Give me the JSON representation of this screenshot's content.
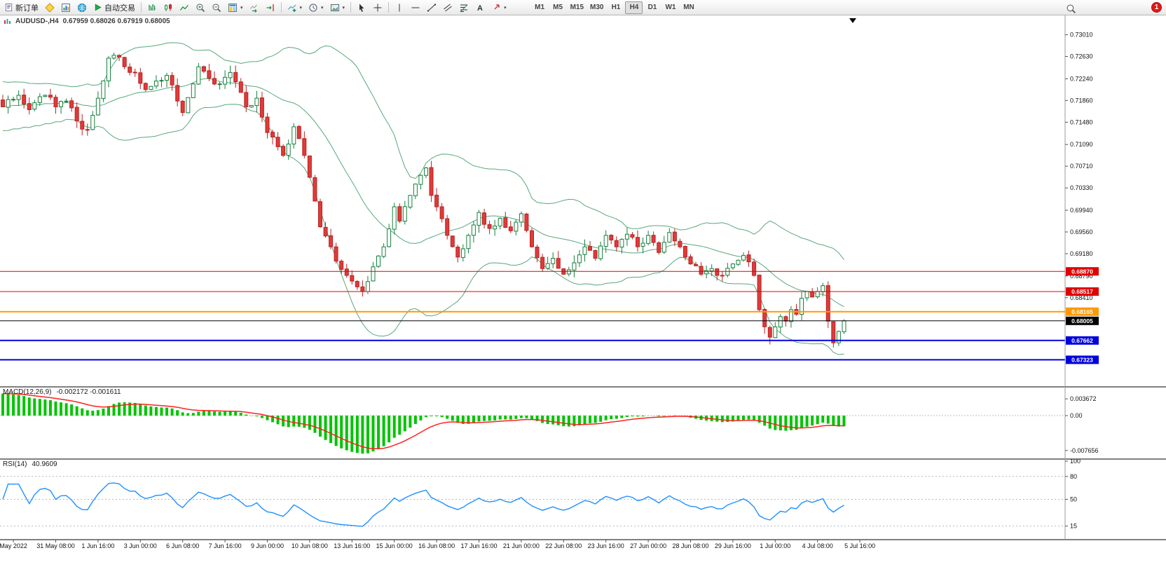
{
  "toolbar": {
    "new_order": "新订单",
    "auto_trading": "自动交易",
    "timeframes": [
      "M1",
      "M5",
      "M15",
      "M30",
      "H1",
      "H4",
      "D1",
      "W1",
      "MN"
    ],
    "active_timeframe": "H4",
    "notification_count": "1"
  },
  "icons": {
    "new-order-icon": "document",
    "metaeditor-icon": "yellow-diamond",
    "data-window-icon": "bar-panel",
    "mql5-community-icon": "globe",
    "auto-trading-icon": "green-play-triangle",
    "bars-chart-icon": "ohlc-bars",
    "candlestick-chart-icon": "candles",
    "line-chart-icon": "polyline",
    "zoom-in-icon": "magnifier-plus",
    "zoom-out-icon": "magnifier-minus",
    "new-chart-icon": "tiled-window",
    "auto-scroll-icon": "chart-arrow-right",
    "chart-shift-icon": "arrow-to-bar",
    "indicators-icon": "chart-plus",
    "periods-icon": "clock",
    "templates-icon": "picture",
    "cursor-icon": "pointer-arrow",
    "crosshair-icon": "plus-cross",
    "vertical-line-icon": "vertical-line",
    "horizontal-line-icon": "horizontal-line",
    "trendline-icon": "diagonal-line",
    "channel-icon": "parallel-lines",
    "fibonacci-icon": "stacked-lines",
    "text-icon": "letter-A",
    "arrows-icon": "red-arrow",
    "search-icon": "magnifier",
    "price-shift-icon": "black-down-triangle"
  },
  "chart": {
    "symbol_label": "AUDUSD-,H4",
    "ohlc": "0.67959 0.68026 0.67919 0.68005"
  },
  "chart_data": {
    "type": "candlestick",
    "symbol": "AUDUSD",
    "timeframe": "H4",
    "title": "AUDUSD-,H4",
    "current_bar": {
      "open": 0.67959,
      "high": 0.68026,
      "low": 0.67919,
      "close": 0.68005
    },
    "indicators": [
      "Bollinger Bands(20,2)",
      "MACD(12,26,9)",
      "RSI(14)"
    ],
    "candle_count": 160,
    "price_path": [
      [
        0,
        0.7175
      ],
      [
        3,
        0.7195
      ],
      [
        5,
        0.717
      ],
      [
        8,
        0.7195
      ],
      [
        10,
        0.7175
      ],
      [
        12,
        0.7185
      ],
      [
        14,
        0.715
      ],
      [
        16,
        0.7135
      ],
      [
        18,
        0.719
      ],
      [
        20,
        0.726
      ],
      [
        21,
        0.7265
      ],
      [
        23,
        0.7245
      ],
      [
        25,
        0.7235
      ],
      [
        27,
        0.7205
      ],
      [
        29,
        0.722
      ],
      [
        31,
        0.723
      ],
      [
        33,
        0.7185
      ],
      [
        34,
        0.7165
      ],
      [
        36,
        0.7215
      ],
      [
        37,
        0.7245
      ],
      [
        39,
        0.7225
      ],
      [
        41,
        0.7215
      ],
      [
        43,
        0.7235
      ],
      [
        45,
        0.72
      ],
      [
        46,
        0.7175
      ],
      [
        48,
        0.719
      ],
      [
        50,
        0.713
      ],
      [
        52,
        0.7105
      ],
      [
        53,
        0.709
      ],
      [
        55,
        0.714
      ],
      [
        57,
        0.709
      ],
      [
        59,
        0.701
      ],
      [
        60,
        0.6965
      ],
      [
        62,
        0.693
      ],
      [
        63,
        0.6905
      ],
      [
        65,
        0.688
      ],
      [
        66,
        0.687
      ],
      [
        68,
        0.6852
      ],
      [
        70,
        0.6895
      ],
      [
        72,
        0.693
      ],
      [
        74,
        0.7
      ],
      [
        75,
        0.6975
      ],
      [
        77,
        0.702
      ],
      [
        79,
        0.7055
      ],
      [
        80,
        0.7068
      ],
      [
        81,
        0.702
      ],
      [
        82,
        0.7
      ],
      [
        84,
        0.695
      ],
      [
        86,
        0.6912
      ],
      [
        88,
        0.695
      ],
      [
        90,
        0.699
      ],
      [
        92,
        0.6962
      ],
      [
        94,
        0.698
      ],
      [
        96,
        0.6958
      ],
      [
        98,
        0.6988
      ],
      [
        100,
        0.693
      ],
      [
        102,
        0.6892
      ],
      [
        104,
        0.691
      ],
      [
        106,
        0.6882
      ],
      [
        108,
        0.6902
      ],
      [
        110,
        0.693
      ],
      [
        112,
        0.691
      ],
      [
        114,
        0.695
      ],
      [
        116,
        0.693
      ],
      [
        118,
        0.6952
      ],
      [
        120,
        0.693
      ],
      [
        122,
        0.695
      ],
      [
        124,
        0.692
      ],
      [
        126,
        0.6955
      ],
      [
        128,
        0.693
      ],
      [
        130,
        0.69
      ],
      [
        132,
        0.6882
      ],
      [
        134,
        0.6892
      ],
      [
        136,
        0.688
      ],
      [
        138,
        0.69
      ],
      [
        140,
        0.6915
      ],
      [
        142,
        0.688
      ],
      [
        143,
        0.682
      ],
      [
        144,
        0.679
      ],
      [
        145,
        0.6772
      ],
      [
        146,
        0.679
      ],
      [
        147,
        0.6808
      ],
      [
        148,
        0.68
      ],
      [
        149,
        0.682
      ],
      [
        150,
        0.6812
      ],
      [
        151,
        0.684
      ],
      [
        152,
        0.6852
      ],
      [
        153,
        0.6842
      ],
      [
        154,
        0.6852
      ],
      [
        155,
        0.6862
      ],
      [
        156,
        0.68
      ],
      [
        157,
        0.6762
      ],
      [
        158,
        0.6782
      ],
      [
        159,
        0.68005
      ]
    ],
    "price_axis_ticks": [
      0.7301,
      0.7263,
      0.7224,
      0.7186,
      0.7148,
      0.7109,
      0.7071,
      0.7033,
      0.6994,
      0.6956,
      0.6918,
      0.6879,
      0.6841
    ],
    "levels": [
      {
        "price": 0.6887,
        "label": "0.68870",
        "color": "#e00000",
        "line_width": 1
      },
      {
        "price": 0.68517,
        "label": "0.68517",
        "color": "#e00000",
        "line_width": 1
      },
      {
        "price": 0.68165,
        "label": "0.68165",
        "color": "#ff9900",
        "line_width": 2
      },
      {
        "price": 0.68005,
        "label": "0.68005",
        "color": "#000000",
        "line_width": 1
      },
      {
        "price": 0.67662,
        "label": "0.67662",
        "color": "#0000dd",
        "line_width": 2
      },
      {
        "price": 0.67323,
        "label": "0.67323",
        "color": "#0000dd",
        "line_width": 2
      }
    ],
    "time_labels": [
      "May 2022",
      "31 May 08:00",
      "1 Jun 16:00",
      "3 Jun 00:00",
      "6 Jun 08:00",
      "7 Jun 16:00",
      "9 Jun 00:00",
      "10 Jun 08:00",
      "13 Jun 16:00",
      "15 Jun 00:00",
      "16 Jun 08:00",
      "17 Jun 16:00",
      "21 Jun 00:00",
      "22 Jun 08:00",
      "23 Jun 16:00",
      "27 Jun 00:00",
      "28 Jun 08:00",
      "29 Jun 16:00",
      "1 Jul 00:00",
      "4 Jul 08:00",
      "5 Jul 16:00"
    ],
    "bollinger": {
      "period": 20,
      "deviation": 2
    },
    "macd": {
      "label": "MACD(12,26,9)",
      "values_text": "-0.002172 -0.001611",
      "value_macd": -0.002172,
      "value_signal": -0.001611,
      "scale_ticks": [
        0.003672,
        0,
        -0.007656
      ],
      "scale_tick_labels": [
        "0.003672",
        "0.00",
        "-0.007656"
      ]
    },
    "rsi": {
      "label": "RSI(14)",
      "value_text": "40.9609",
      "value": 40.9609,
      "levels": [
        100,
        80,
        50,
        15
      ]
    }
  },
  "colors": {
    "bull_body": "#ffffff",
    "bull_border": "#157f3c",
    "bear_body": "#e03a3a",
    "bear_border": "#b92222",
    "bands": "#57a87b",
    "macd_hist": "#00c400",
    "macd_signal": "#ff2020",
    "rsi_line": "#1e90ff",
    "axis_text": "#111111",
    "level_red": "#e00000",
    "level_orange": "#ff9900",
    "level_blue": "#0000dd",
    "current_price_bg": "#000000"
  }
}
